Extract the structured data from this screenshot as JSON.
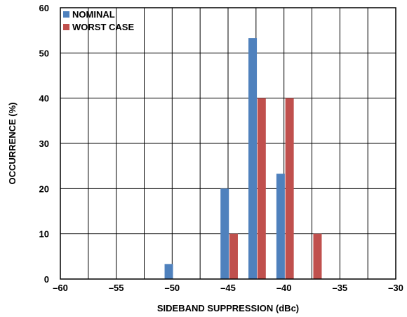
{
  "chart_data": {
    "type": "bar",
    "title": "",
    "xlabel": "SIDEBAND SUPPRESSION (dBc)",
    "ylabel": "OCCURRENCE (%)",
    "xlim": [
      -60,
      -30
    ],
    "ylim": [
      0,
      60
    ],
    "xticks": [
      -60,
      -55,
      -50,
      -45,
      -40,
      -35,
      -30
    ],
    "xtick_labels": [
      "–60",
      "–55",
      "–50",
      "–45",
      "–40",
      "–35",
      "–30"
    ],
    "yticks": [
      0,
      10,
      20,
      30,
      40,
      50,
      60
    ],
    "ytick_labels": [
      "0",
      "10",
      "20",
      "30",
      "40",
      "50",
      "60"
    ],
    "grid": true,
    "legend_position": "top-left",
    "series": [
      {
        "name": "NOMINAL",
        "color": "#4f81bd",
        "points": [
          {
            "x": -50.3,
            "y": 3.3
          },
          {
            "x": -45.3,
            "y": 20
          },
          {
            "x": -42.8,
            "y": 53.3
          },
          {
            "x": -40.3,
            "y": 23.3
          }
        ]
      },
      {
        "name": "WORST CASE",
        "color": "#c0504d",
        "points": [
          {
            "x": -44.5,
            "y": 10
          },
          {
            "x": -42.0,
            "y": 40
          },
          {
            "x": -39.5,
            "y": 40
          },
          {
            "x": -37.0,
            "y": 10
          }
        ]
      }
    ]
  }
}
